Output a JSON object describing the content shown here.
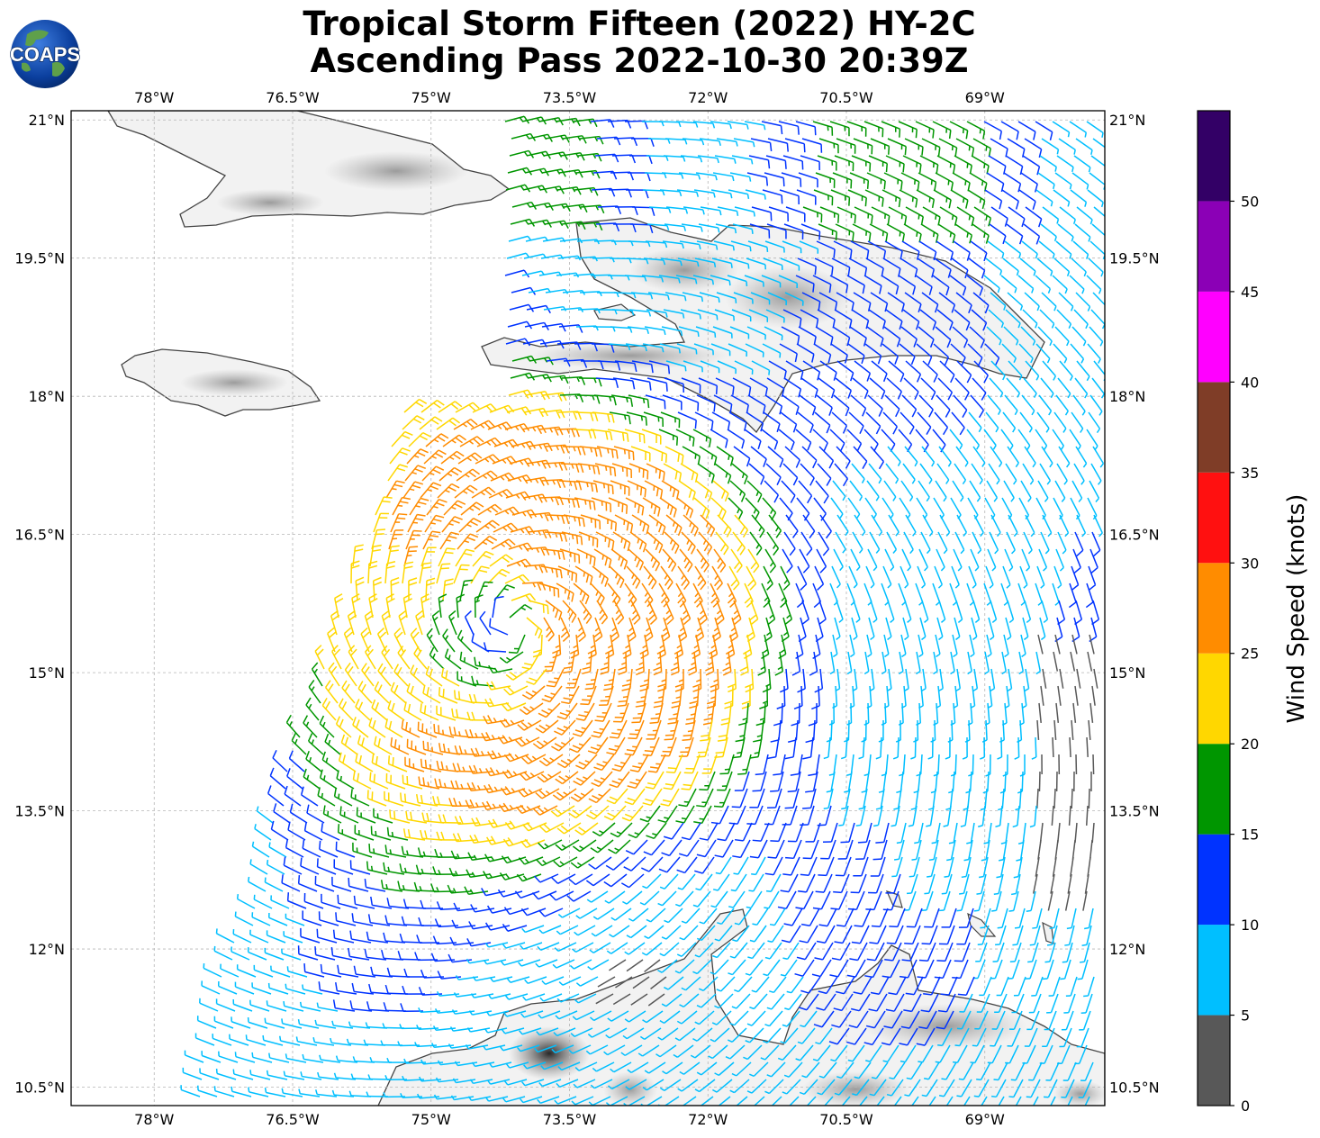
{
  "title": {
    "line1": "Tropical Storm Fifteen (2022) HY-2C",
    "line2": "Ascending Pass 2022-10-30 20:39Z"
  },
  "logo": {
    "text": "COAPS"
  },
  "map": {
    "lon_ticks": [
      "78°W",
      "76.5°W",
      "75°W",
      "73.5°W",
      "72°W",
      "70.5°W",
      "69°W"
    ],
    "lat_ticks": [
      "21°N",
      "19.5°N",
      "18°N",
      "16.5°N",
      "15°N",
      "13.5°N",
      "12°N",
      "10.5°N"
    ],
    "lon_values": [
      -78,
      -76.5,
      -75,
      -73.5,
      -72,
      -70.5,
      -69
    ],
    "lat_values": [
      21,
      19.5,
      18,
      16.5,
      15,
      13.5,
      12,
      10.5
    ],
    "lon_range": [
      -78.9,
      -67.7
    ],
    "lat_range": [
      10.3,
      21.1
    ],
    "storm_center": {
      "lon": -74.1,
      "lat": 15.5
    },
    "land_outline_color": "#444444",
    "grid": "dashed"
  },
  "colorbar": {
    "label": "Wind Speed (knots)",
    "ticks": [
      "0",
      "5",
      "10",
      "15",
      "20",
      "25",
      "30",
      "35",
      "40",
      "45",
      "50"
    ],
    "colors": [
      "#585858",
      "#00bfff",
      "#0033ff",
      "#009600",
      "#ffd700",
      "#ff8c00",
      "#ff1010",
      "#7f3d27",
      "#ff00ff",
      "#8b00b6",
      "#330066"
    ]
  }
}
